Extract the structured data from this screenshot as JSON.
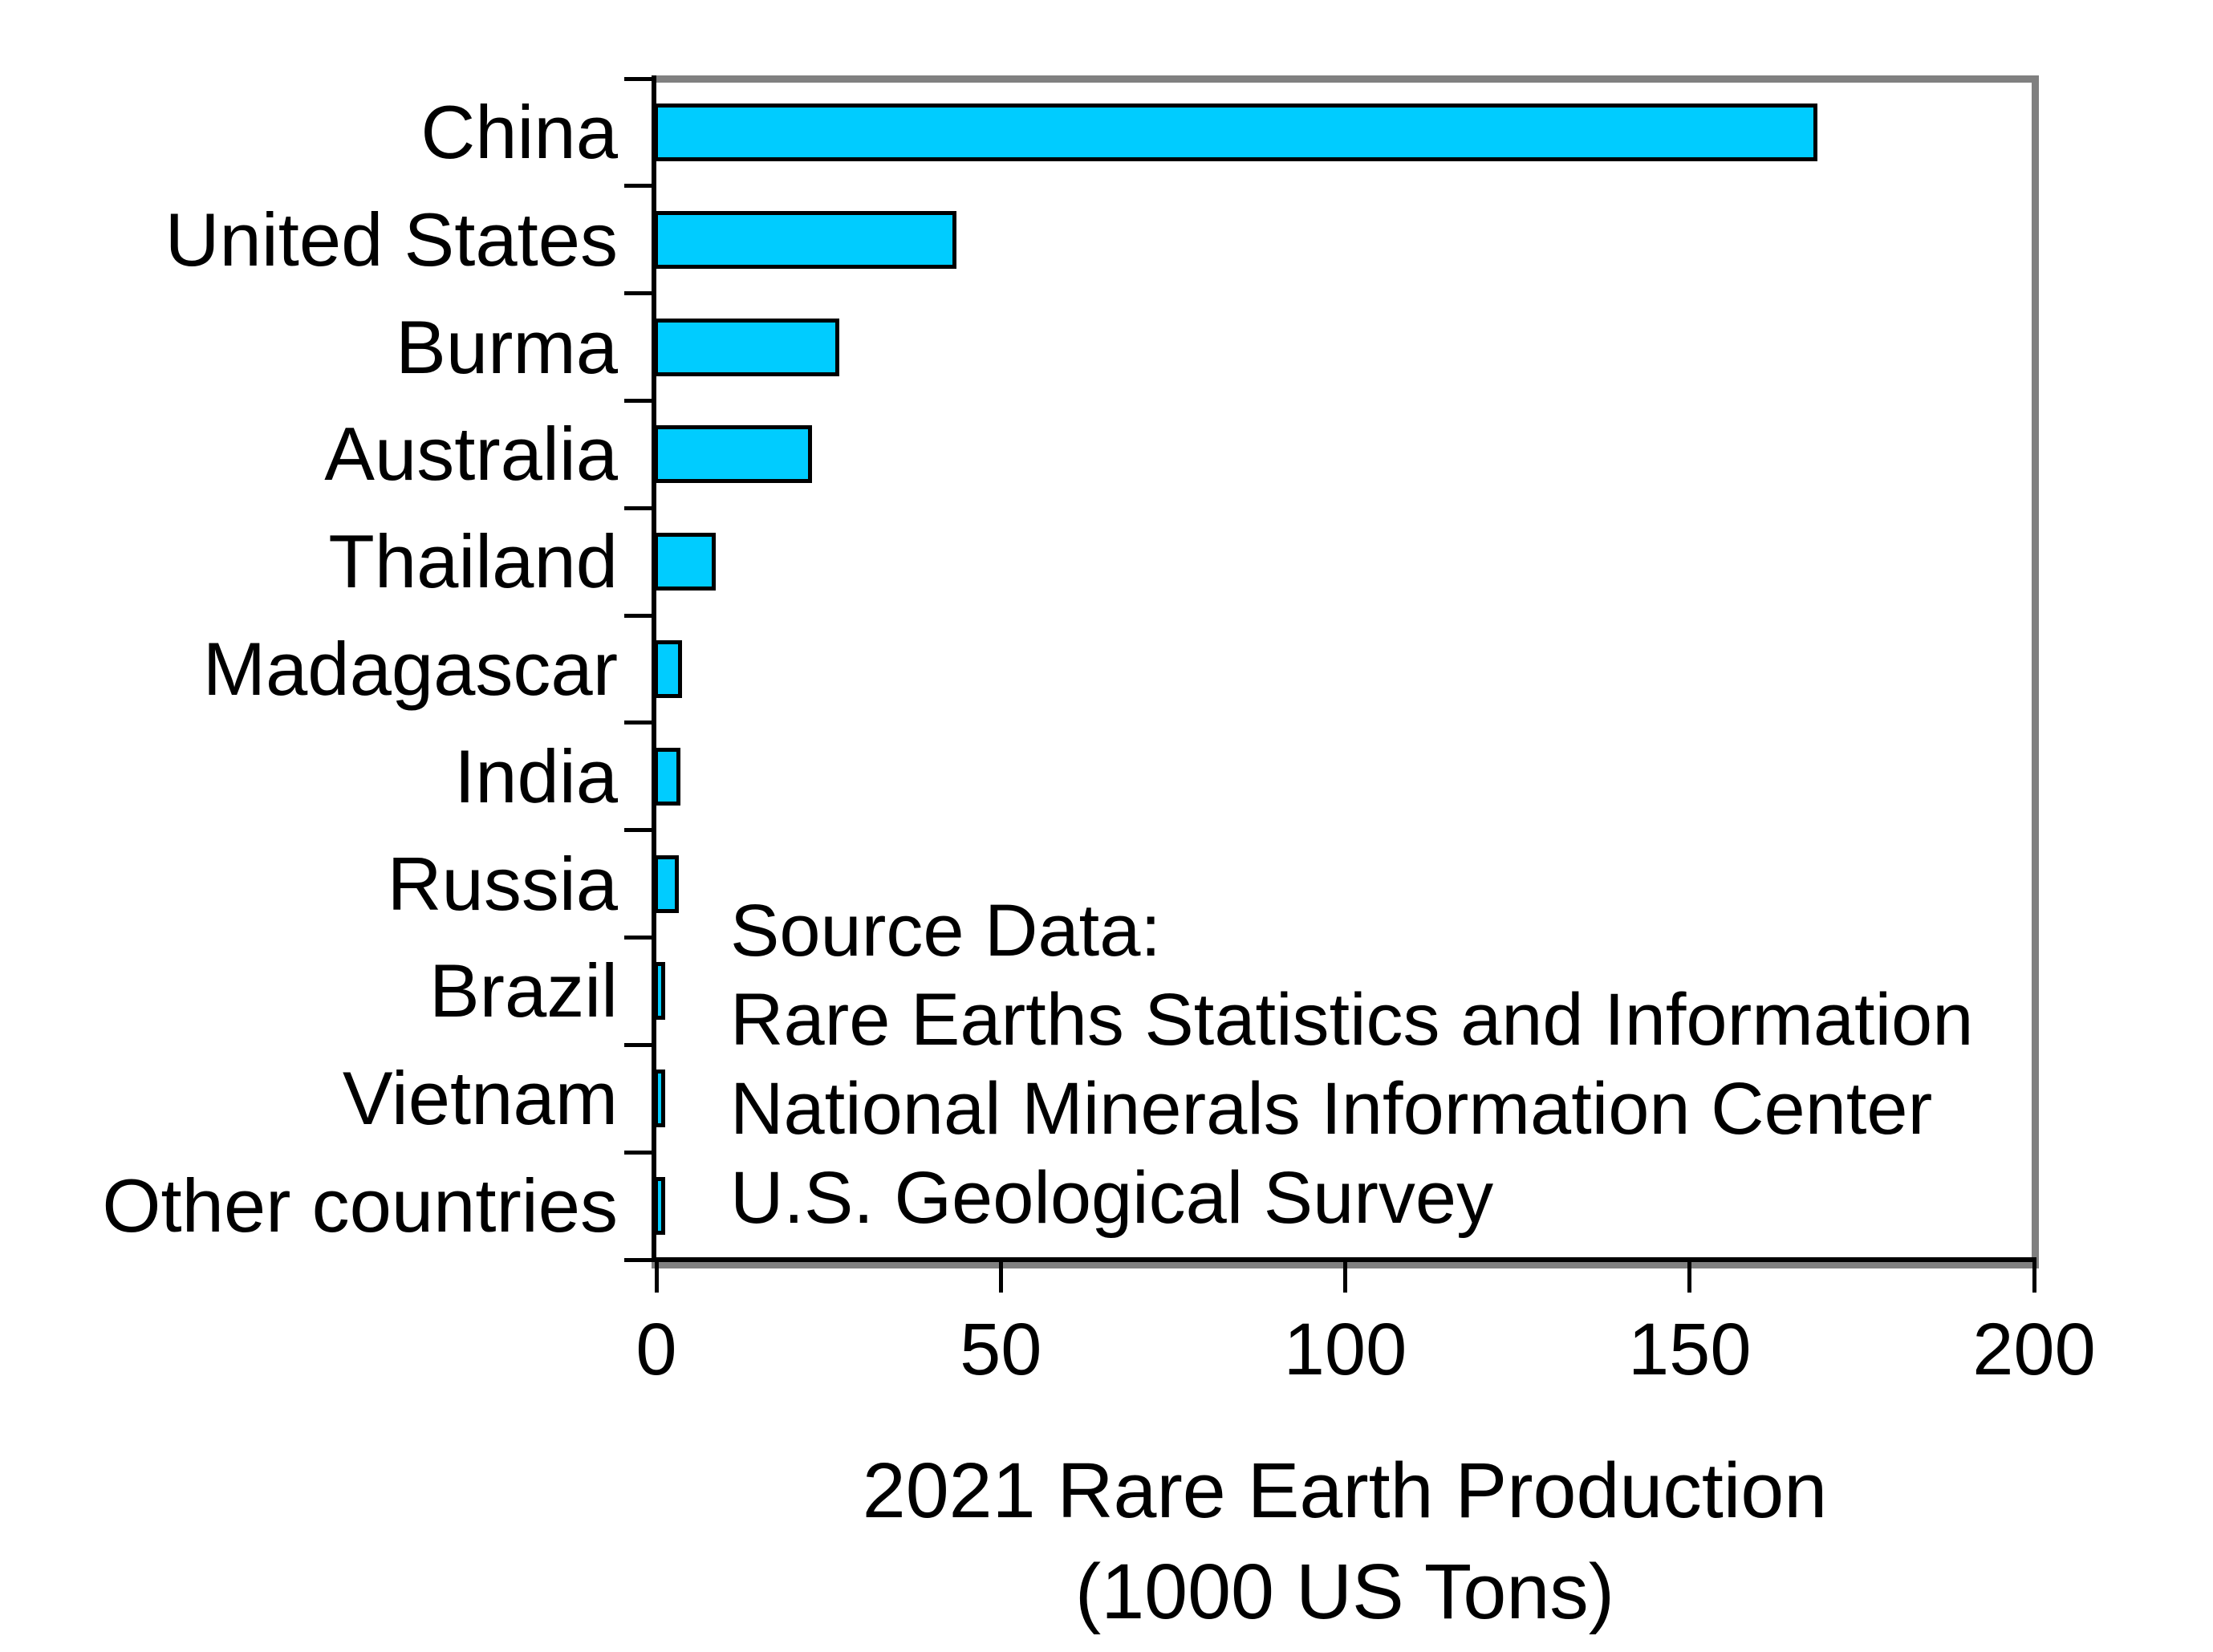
{
  "figure": {
    "background": "#FFFFFF"
  },
  "chart_data": {
    "type": "bar",
    "orientation": "horizontal",
    "title_lines": [
      "2021 Rare Earth Production",
      "(1000 US Tons)"
    ],
    "xlabel": "2021 Rare Earth Production (1000 US Tons)",
    "categories": [
      "China",
      "United States",
      "Burma",
      "Australia",
      "Thailand",
      "Madagascar",
      "India",
      "Russia",
      "Brazil",
      "Vietnam",
      "Other countries"
    ],
    "values": [
      168,
      43,
      26,
      22,
      8,
      3.2,
      2.9,
      2.7,
      0.5,
      0.4,
      0.1
    ],
    "xlim": [
      0,
      200
    ],
    "x_ticks": [
      0,
      50,
      100,
      150,
      200
    ],
    "grid": false,
    "legend": null,
    "bar_color": "#00CCFF",
    "bar_edge_color": "#000000",
    "axis_color": "#000000",
    "frame_gray_color": "#808080",
    "text_color": "#000000",
    "annotation": {
      "lines": [
        "Source Data:",
        "Rare Earths Statistics and Information",
        "National Minerals Information Center",
        "U.S. Geological Survey"
      ]
    }
  }
}
